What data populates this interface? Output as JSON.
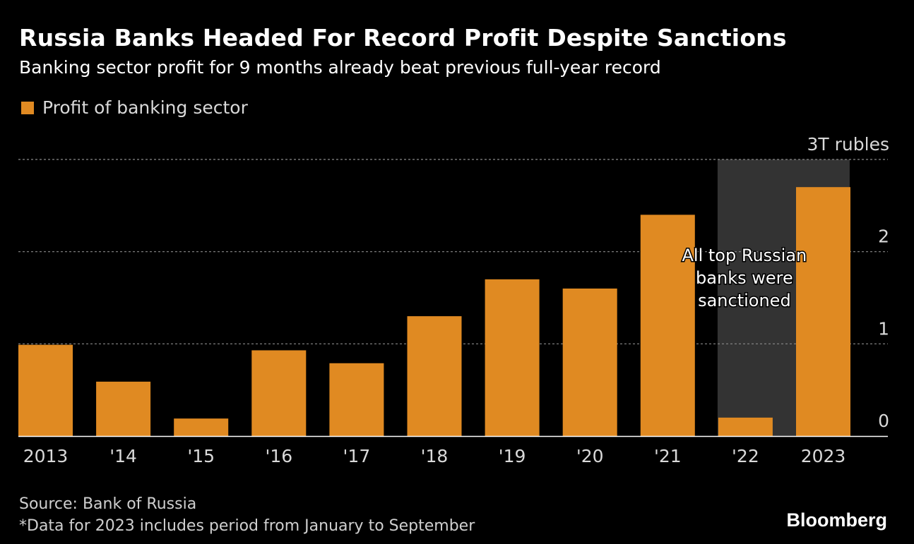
{
  "title": "Russia Banks Headed For Record Profit Despite Sanctions",
  "subtitle": "Banking sector profit for 9 months already beat previous full-year record",
  "legend": {
    "label": "Profit of banking sector",
    "color": "#e08a22"
  },
  "source": "Source: Bank of Russia",
  "note": "*Data for 2023 includes period from January to September",
  "logo": "Bloomberg",
  "chart_data": {
    "type": "bar",
    "categories": [
      "2013",
      "'14",
      "'15",
      "'16",
      "'17",
      "'18",
      "'19",
      "'20",
      "'21",
      "'22",
      "2023"
    ],
    "series": [
      {
        "name": "Profit of banking sector",
        "values": [
          0.99,
          0.59,
          0.19,
          0.93,
          0.79,
          1.3,
          1.7,
          1.6,
          2.4,
          0.2,
          2.7
        ]
      }
    ],
    "ylim": [
      0,
      3
    ],
    "yticks": [
      0,
      1,
      2,
      3
    ],
    "ytick_labels": [
      "0",
      "1",
      "2",
      "3T rubles"
    ],
    "y_axis_side": "right",
    "grid": true,
    "bar_color": "#e08a22",
    "highlight": {
      "category": "'22",
      "color": "#333333"
    },
    "annotation": {
      "category": "'22",
      "lines": [
        "All top Russian",
        "banks were",
        "sanctioned"
      ]
    }
  }
}
